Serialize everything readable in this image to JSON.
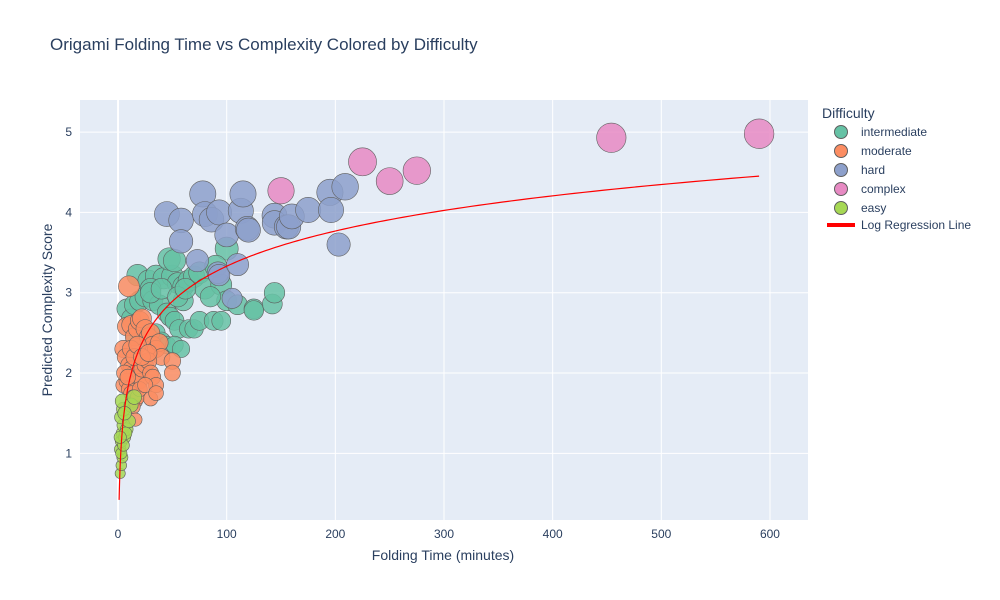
{
  "chart_data": {
    "type": "scatter",
    "title": "Origami Folding Time vs Complexity Colored by Difficulty",
    "xlabel": "Folding Time (minutes)",
    "ylabel": "Predicted Complexity Score",
    "xlim": [
      -35,
      635
    ],
    "ylim": [
      0.17,
      5.4
    ],
    "xticks": [
      "0",
      "100",
      "200",
      "300",
      "400",
      "500",
      "600"
    ],
    "yticks": [
      "1",
      "2",
      "3",
      "4",
      "5"
    ],
    "grid": true,
    "legend_placement": "top-right, outside plot",
    "legend_title": "Difficulty",
    "colors": {
      "plot_background": "#e5ecf6",
      "grid": "#ffffff",
      "marker_outline": "#5f5f5f",
      "regression_line": "#ff0000"
    },
    "series": [
      {
        "name": "intermediate",
        "color": "#66c2a5",
        "points": [
          [
            100,
            3.55
          ],
          [
            18,
            3.22
          ],
          [
            28,
            3.15
          ],
          [
            35,
            3.21
          ],
          [
            42,
            3.18
          ],
          [
            50,
            3.21
          ],
          [
            55,
            3.12
          ],
          [
            60,
            3.08
          ],
          [
            65,
            3.15
          ],
          [
            70,
            3.2
          ],
          [
            75,
            3.25
          ],
          [
            80,
            3.05
          ],
          [
            90,
            3.33
          ],
          [
            95,
            3.1
          ],
          [
            8,
            2.8
          ],
          [
            12,
            2.68
          ],
          [
            15,
            2.85
          ],
          [
            20,
            2.9
          ],
          [
            25,
            2.95
          ],
          [
            30,
            3.05
          ],
          [
            32,
            2.9
          ],
          [
            38,
            2.85
          ],
          [
            45,
            2.75
          ],
          [
            48,
            2.7
          ],
          [
            52,
            2.65
          ],
          [
            56,
            2.55
          ],
          [
            60,
            2.9
          ],
          [
            65,
            2.55
          ],
          [
            70,
            2.55
          ],
          [
            75,
            2.65
          ],
          [
            88,
            2.65
          ],
          [
            95,
            2.65
          ],
          [
            100,
            2.9
          ],
          [
            110,
            2.85
          ],
          [
            125,
            2.8
          ],
          [
            125,
            2.78
          ],
          [
            142,
            2.86
          ],
          [
            144,
            3.0
          ],
          [
            16,
            2.45
          ],
          [
            22,
            2.55
          ],
          [
            35,
            2.5
          ],
          [
            40,
            2.4
          ],
          [
            45,
            2.35
          ],
          [
            52,
            2.35
          ],
          [
            58,
            2.3
          ],
          [
            30,
            3.0
          ],
          [
            40,
            3.05
          ],
          [
            55,
            2.95
          ],
          [
            62,
            3.05
          ],
          [
            85,
            2.95
          ],
          [
            47,
            3.42
          ],
          [
            52,
            3.4
          ]
        ]
      },
      {
        "name": "moderate",
        "color": "#fc8d62",
        "points": [
          [
            10,
            3.08
          ],
          [
            8,
            2.58
          ],
          [
            12,
            2.6
          ],
          [
            15,
            2.45
          ],
          [
            18,
            2.55
          ],
          [
            20,
            2.65
          ],
          [
            22,
            2.68
          ],
          [
            25,
            2.55
          ],
          [
            28,
            2.45
          ],
          [
            30,
            2.5
          ],
          [
            32,
            2.35
          ],
          [
            35,
            2.3
          ],
          [
            38,
            2.38
          ],
          [
            40,
            2.2
          ],
          [
            5,
            2.3
          ],
          [
            7,
            2.2
          ],
          [
            10,
            2.1
          ],
          [
            12,
            2.05
          ],
          [
            15,
            2.0
          ],
          [
            18,
            1.95
          ],
          [
            20,
            1.9
          ],
          [
            22,
            2.05
          ],
          [
            25,
            2.1
          ],
          [
            28,
            2.15
          ],
          [
            30,
            2.0
          ],
          [
            32,
            1.95
          ],
          [
            35,
            1.85
          ],
          [
            5,
            1.85
          ],
          [
            8,
            1.9
          ],
          [
            10,
            1.8
          ],
          [
            12,
            1.75
          ],
          [
            14,
            1.7
          ],
          [
            16,
            1.65
          ],
          [
            18,
            1.7
          ],
          [
            20,
            1.8
          ],
          [
            25,
            1.85
          ],
          [
            30,
            1.68
          ],
          [
            35,
            1.75
          ],
          [
            50,
            2.15
          ],
          [
            50,
            2.0
          ],
          [
            6,
            2.0
          ],
          [
            9,
            1.95
          ],
          [
            12,
            2.3
          ],
          [
            15,
            2.2
          ],
          [
            18,
            2.35
          ],
          [
            22,
            2.2
          ],
          [
            28,
            2.25
          ],
          [
            14,
            1.58
          ],
          [
            16,
            1.42
          ]
        ]
      },
      {
        "name": "hard",
        "color": "#8da0cb",
        "points": [
          [
            45,
            3.98
          ],
          [
            58,
            3.9
          ],
          [
            58,
            3.64
          ],
          [
            78,
            4.23
          ],
          [
            80,
            3.98
          ],
          [
            86,
            3.91
          ],
          [
            93,
            4.0
          ],
          [
            100,
            3.72
          ],
          [
            113,
            4.02
          ],
          [
            115,
            4.23
          ],
          [
            119,
            3.8
          ],
          [
            120,
            3.78
          ],
          [
            144,
            3.96
          ],
          [
            144,
            3.87
          ],
          [
            155,
            3.82
          ],
          [
            157,
            3.82
          ],
          [
            160,
            3.95
          ],
          [
            175,
            4.03
          ],
          [
            195,
            4.25
          ],
          [
            196,
            4.03
          ],
          [
            203,
            3.6
          ],
          [
            209,
            4.32
          ],
          [
            73,
            3.4
          ],
          [
            92,
            3.25
          ],
          [
            93,
            3.22
          ],
          [
            110,
            3.35
          ],
          [
            105,
            2.93
          ]
        ]
      },
      {
        "name": "complex",
        "color": "#e78ac3",
        "points": [
          [
            150,
            4.27
          ],
          [
            225,
            4.63
          ],
          [
            250,
            4.39
          ],
          [
            275,
            4.52
          ],
          [
            454,
            4.93
          ],
          [
            590,
            4.98
          ]
        ]
      },
      {
        "name": "easy",
        "color": "#a6d854",
        "points": [
          [
            2,
            0.75
          ],
          [
            3,
            0.85
          ],
          [
            4,
            0.95
          ],
          [
            2,
            1.05
          ],
          [
            3,
            1.15
          ],
          [
            4,
            1.25
          ],
          [
            5,
            1.35
          ],
          [
            3,
            1.45
          ],
          [
            5,
            1.55
          ],
          [
            4,
            1.65
          ],
          [
            6,
            1.2
          ],
          [
            8,
            1.3
          ],
          [
            10,
            1.4
          ],
          [
            12,
            1.6
          ],
          [
            15,
            1.7
          ],
          [
            3,
            1.0
          ],
          [
            5,
            1.1
          ],
          [
            7,
            1.25
          ],
          [
            2,
            1.2
          ],
          [
            6,
            1.5
          ]
        ]
      }
    ],
    "regression": {
      "name": "Log Regression Line",
      "x_range": [
        1,
        590
      ],
      "formula": "y = 0.42 + 0.632*ln(x)"
    }
  }
}
